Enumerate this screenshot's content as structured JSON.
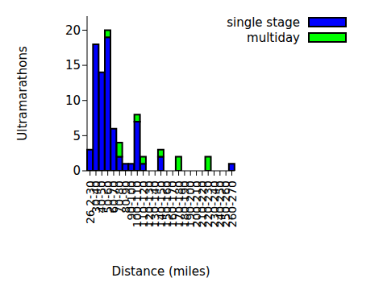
{
  "chart_data": {
    "type": "bar",
    "x_label": "Distance (miles)",
    "y_label": "Ultramarathons",
    "categories": [
      "26.2-30",
      "30-40",
      "40-50",
      "50-60",
      "60-70",
      "70-80",
      "80-90",
      "90-100",
      "100-110",
      "110-120",
      "120-130",
      "130-140",
      "140-150",
      "150-160",
      "160-170",
      "170-180",
      "180-190",
      "190-200",
      "200-210",
      "210-220",
      "220-230",
      "230-240",
      "240-250",
      "250-260",
      "260-270"
    ],
    "series": [
      {
        "name": "single stage",
        "color": "#0000ff",
        "values": [
          3,
          18,
          14,
          19,
          6,
          2,
          1,
          1,
          7,
          1,
          0,
          0,
          2,
          0,
          0,
          0,
          0,
          0,
          0,
          0,
          0,
          0,
          0,
          0,
          1
        ]
      },
      {
        "name": "multiday",
        "color": "#00ff00",
        "values": [
          0,
          0,
          0,
          1,
          0,
          2,
          0,
          0,
          1,
          1,
          0,
          0,
          1,
          0,
          0,
          2,
          0,
          0,
          0,
          0,
          2,
          0,
          0,
          0,
          0
        ]
      }
    ],
    "stacked": true,
    "ylim": [
      0,
      22
    ],
    "yticks": [
      0,
      5,
      10,
      15,
      20
    ],
    "legend": "upper right"
  }
}
